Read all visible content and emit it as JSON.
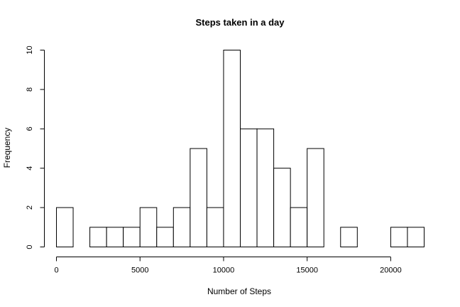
{
  "chart_data": {
    "type": "bar",
    "title": "Steps taken in a day",
    "xlabel": "Number of Steps",
    "ylabel": "Frequency",
    "bin_width": 1000,
    "bins": [
      {
        "start": 0,
        "end": 1000,
        "count": 2
      },
      {
        "start": 1000,
        "end": 2000,
        "count": 0
      },
      {
        "start": 2000,
        "end": 3000,
        "count": 1
      },
      {
        "start": 3000,
        "end": 4000,
        "count": 1
      },
      {
        "start": 4000,
        "end": 5000,
        "count": 1
      },
      {
        "start": 5000,
        "end": 6000,
        "count": 2
      },
      {
        "start": 6000,
        "end": 7000,
        "count": 1
      },
      {
        "start": 7000,
        "end": 8000,
        "count": 2
      },
      {
        "start": 8000,
        "end": 9000,
        "count": 5
      },
      {
        "start": 9000,
        "end": 10000,
        "count": 2
      },
      {
        "start": 10000,
        "end": 11000,
        "count": 10
      },
      {
        "start": 11000,
        "end": 12000,
        "count": 6
      },
      {
        "start": 12000,
        "end": 13000,
        "count": 6
      },
      {
        "start": 13000,
        "end": 14000,
        "count": 4
      },
      {
        "start": 14000,
        "end": 15000,
        "count": 2
      },
      {
        "start": 15000,
        "end": 16000,
        "count": 5
      },
      {
        "start": 16000,
        "end": 17000,
        "count": 0
      },
      {
        "start": 17000,
        "end": 18000,
        "count": 1
      },
      {
        "start": 18000,
        "end": 19000,
        "count": 0
      },
      {
        "start": 19000,
        "end": 20000,
        "count": 0
      },
      {
        "start": 20000,
        "end": 21000,
        "count": 1
      },
      {
        "start": 21000,
        "end": 22000,
        "count": 1
      }
    ],
    "xlim": [
      0,
      22000
    ],
    "ylim": [
      0,
      10
    ],
    "x_ticks": [
      0,
      5000,
      10000,
      15000,
      20000
    ],
    "y_ticks": [
      0,
      2,
      4,
      6,
      8,
      10
    ],
    "grid": false,
    "legend": "none"
  }
}
